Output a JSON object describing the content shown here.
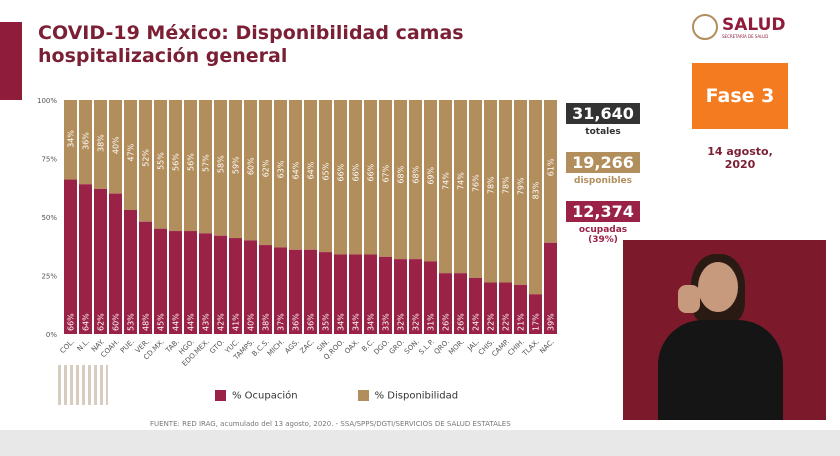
{
  "header": {
    "title": "COVID-19 México: Disponibilidad camas hospitalización general"
  },
  "logo": {
    "text": "SALUD",
    "subtext": "SECRETARÍA DE SALUD"
  },
  "phase": {
    "label": "Fase 3",
    "color": "#f47b20"
  },
  "date": "14 agosto, 2020",
  "stats": [
    {
      "value": "31,640",
      "label": "totales",
      "color": "#333333"
    },
    {
      "value": "19,266",
      "label": "disponibles",
      "color": "#b38e5d"
    },
    {
      "value": "12,374",
      "label": "ocupadas (39%)",
      "color": "#9b2247"
    }
  ],
  "legend": {
    "occupied": "% Ocupación",
    "available": "% Disponibilidad"
  },
  "footer": "FUENTE: RED IRAG, acumulado del 13 agosto, 2020. - SSA/SPPS/DGTI/SERVICIOS DE SALUD ESTATALES",
  "chart_data": {
    "type": "bar",
    "stacked": true,
    "categories": [
      "COL.",
      "N.L.",
      "NAY.",
      "COAH.",
      "PUE.",
      "VER.",
      "CD.MX.",
      "TAB.",
      "HGO.",
      "EDO.MEX.",
      "GTO.",
      "YUC.",
      "TAMPS.",
      "B.C.S.",
      "MICH.",
      "AGS.",
      "ZAC.",
      "SIN.",
      "Q.ROO.",
      "OAX.",
      "B.C.",
      "DGO.",
      "GRO.",
      "SON.",
      "S.L.P.",
      "QRO.",
      "MOR.",
      "JAL.",
      "CHIS.",
      "CAMP.",
      "CHIH.",
      "TLAX.",
      "NAC."
    ],
    "series": [
      {
        "name": "% Ocupación",
        "color": "#9b2247",
        "values": [
          66,
          64,
          62,
          60,
          53,
          48,
          45,
          44,
          44,
          43,
          42,
          41,
          40,
          38,
          37,
          36,
          36,
          35,
          34,
          34,
          34,
          33,
          32,
          32,
          31,
          26,
          26,
          24,
          22,
          22,
          21,
          17,
          39
        ]
      },
      {
        "name": "% Disponibilidad",
        "color": "#b38e5d",
        "values": [
          34,
          36,
          38,
          40,
          47,
          52,
          55,
          56,
          56,
          57,
          58,
          59,
          60,
          62,
          63,
          64,
          64,
          65,
          66,
          66,
          66,
          67,
          68,
          68,
          69,
          74,
          74,
          76,
          78,
          78,
          79,
          83,
          61
        ]
      }
    ],
    "yticks": [
      "0%",
      "25%",
      "50%",
      "75%",
      "100%"
    ],
    "ylim": [
      0,
      100
    ],
    "legend_position": "bottom"
  }
}
